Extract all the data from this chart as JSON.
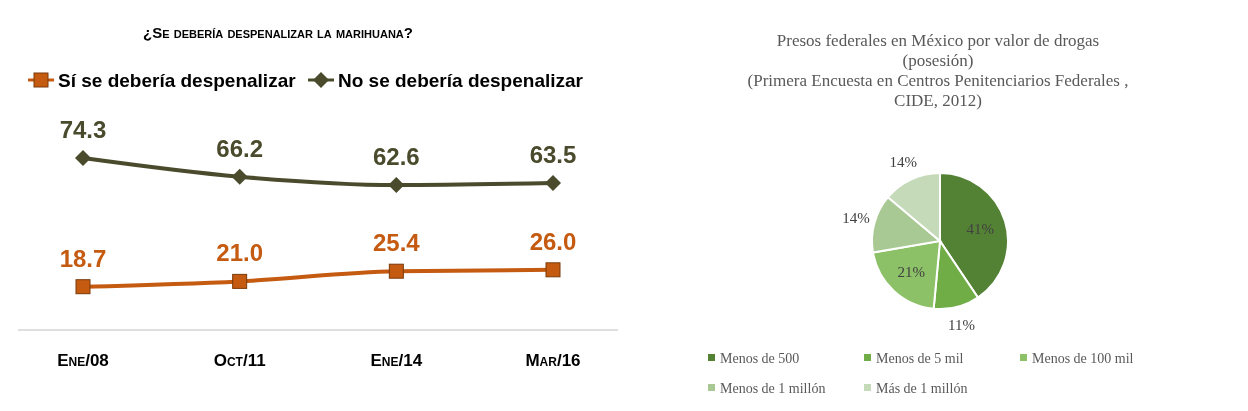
{
  "chart_data": [
    {
      "type": "line",
      "title": "¿Se debería despenalizar la marihuana?",
      "categories": [
        "Ene/08",
        "Oct/11",
        "Ene/14",
        "Mar/16"
      ],
      "series": [
        {
          "name": "Sí se debería despenalizar",
          "color": "#c55a11",
          "marker": "square",
          "values": [
            18.7,
            21.0,
            25.4,
            26.0
          ],
          "value_labels": [
            "18.7",
            "21.0",
            "25.4",
            "26.0"
          ]
        },
        {
          "name": "No se debería despenalizar",
          "color": "#4a4a2c",
          "marker": "diamond",
          "values": [
            74.3,
            66.2,
            62.6,
            63.5
          ],
          "value_labels": [
            "74.3",
            "66.2",
            "62.6",
            "63.5"
          ]
        }
      ],
      "legend": "top left"
    },
    {
      "type": "pie",
      "title": "Presos federales en México por valor de drogas (posesión)",
      "subtitle": "(Primera Encuesta en Centros Penitenciarios Federales , CIDE, 2012)",
      "categories": [
        "Menos de 500",
        "Menos de 5 mil",
        "Menos de 100 mil",
        "Menos de 1 millón",
        "Más de 1 millón"
      ],
      "values": [
        41,
        11,
        21,
        14,
        14
      ],
      "colors": [
        "#548235",
        "#70ad47",
        "#8cc168",
        "#a9c994",
        "#c5dab8"
      ],
      "value_labels": [
        "41%",
        "11%",
        "21%",
        "14%",
        "14%"
      ],
      "legend": "bottom"
    }
  ]
}
